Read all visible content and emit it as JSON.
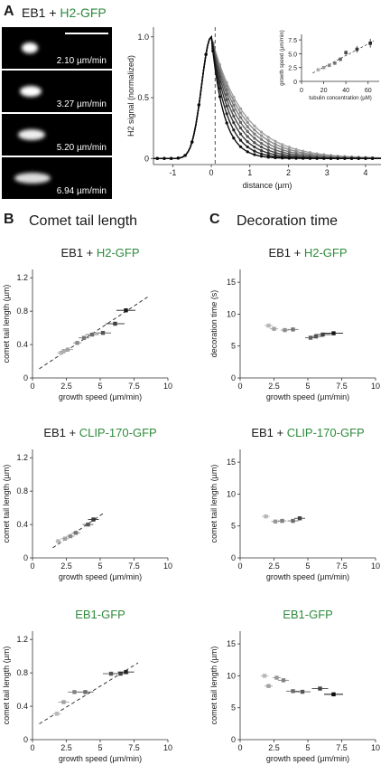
{
  "panel_a": {
    "letter": "A",
    "title_prefix": "EB1 + ",
    "title_green": "H2-GFP",
    "kymographs": [
      {
        "speed": "2.10 µm/min",
        "tail": 0.3
      },
      {
        "speed": "3.27 µm/min",
        "tail": 0.45
      },
      {
        "speed": "5.20 µm/min",
        "tail": 0.65
      },
      {
        "speed": "6.94 µm/min",
        "tail": 0.85
      }
    ]
  },
  "panel_b": {
    "letter": "B",
    "title": "Comet tail length"
  },
  "panel_c": {
    "letter": "C",
    "title": "Decoration time"
  },
  "colors": {
    "green": "#2e8b3c",
    "dark": "#1a1a1a",
    "grey": "#888888",
    "light": "#bbbbbb"
  },
  "chart_data": [
    {
      "id": "profile",
      "type": "line",
      "xlabel": "distance (µm)",
      "ylabel": "H2 signal (normalized)",
      "xlim": [
        -1.5,
        4.4
      ],
      "ylim": [
        -0.05,
        1.08
      ],
      "xticks": [
        -1,
        0,
        1,
        2,
        3,
        4
      ],
      "yticks": [
        0,
        0.5,
        1.0
      ],
      "ytick_labels": [
        "0",
        "0.5",
        "1.0"
      ],
      "vline_x": 0.1,
      "series_decay": [
        1.35,
        1.1,
        0.9,
        0.75,
        0.6,
        0.5,
        0.42,
        0.35
      ]
    },
    {
      "id": "inset",
      "type": "scatter",
      "xlabel": "tubulin concentration (µM)",
      "ylabel": "growth speed (µm/min)",
      "xlim": [
        0,
        70
      ],
      "ylim": [
        0,
        8.5
      ],
      "xticks": [
        0,
        20,
        40,
        60
      ],
      "yticks": [
        0,
        2.5,
        5.0,
        7.5
      ],
      "ytick_labels": [
        "0",
        "2.5",
        "5.0",
        "7.5"
      ],
      "x": [
        15,
        20,
        25,
        30,
        35,
        40,
        50,
        62
      ],
      "y": [
        2.1,
        2.5,
        2.9,
        3.3,
        4.0,
        5.2,
        5.8,
        6.9
      ],
      "yerr": [
        0.2,
        0.2,
        0.2,
        0.3,
        0.3,
        0.4,
        0.6,
        0.8
      ],
      "fit": [
        [
          10,
          1.5
        ],
        [
          65,
          7.3
        ]
      ]
    },
    {
      "id": "b1",
      "type": "scatter",
      "title_prefix": "EB1 + ",
      "title_green": "H2-GFP",
      "xlabel": "growth speed (µm/min)",
      "ylabel": "comet tail length (µm)",
      "xlim": [
        0,
        10
      ],
      "ylim": [
        0,
        1.3
      ],
      "xticks": [
        0,
        2.5,
        5.0,
        7.5,
        10.0
      ],
      "yticks": [
        0,
        0.4,
        0.8,
        1.2
      ],
      "x": [
        2.1,
        2.3,
        2.6,
        3.3,
        3.8,
        4.4,
        5.2,
        6.1,
        6.9
      ],
      "y": [
        0.3,
        0.32,
        0.34,
        0.42,
        0.48,
        0.52,
        0.54,
        0.65,
        0.81
      ],
      "xerr": [
        0.3,
        0.3,
        0.4,
        0.3,
        0.4,
        0.5,
        0.6,
        0.7,
        0.7
      ],
      "shade": [
        0.85,
        0.8,
        0.75,
        0.65,
        0.55,
        0.5,
        0.4,
        0.3,
        0.1
      ],
      "fit": [
        [
          0.5,
          0.11
        ],
        [
          8.5,
          0.97
        ]
      ]
    },
    {
      "id": "c1",
      "type": "scatter",
      "title_prefix": "EB1 + ",
      "title_green": "H2-GFP",
      "xlabel": "growth speed (µm/min)",
      "ylabel": "decoration time (s)",
      "xlim": [
        0,
        10
      ],
      "ylim": [
        0,
        17
      ],
      "xticks": [
        0,
        2.5,
        5.0,
        7.5,
        10.0
      ],
      "yticks": [
        0,
        5,
        10,
        15
      ],
      "x": [
        2.1,
        2.5,
        3.3,
        3.9,
        5.2,
        5.6,
        6.1,
        6.9
      ],
      "y": [
        8.2,
        7.7,
        7.5,
        7.6,
        6.3,
        6.5,
        6.8,
        7.0
      ],
      "xerr": [
        0.3,
        0.3,
        0.3,
        0.4,
        0.4,
        0.5,
        0.6,
        0.7
      ],
      "shade": [
        0.85,
        0.75,
        0.65,
        0.55,
        0.45,
        0.4,
        0.3,
        0.1
      ]
    },
    {
      "id": "b2",
      "type": "scatter",
      "title_prefix": "EB1 + ",
      "title_green": "CLIP-170-GFP",
      "xlabel": "growth speed (µm/min)",
      "ylabel": "comet tail length (µm)",
      "xlim": [
        0,
        10
      ],
      "ylim": [
        0,
        1.3
      ],
      "xticks": [
        0,
        2.5,
        5.0,
        7.5,
        10.0
      ],
      "yticks": [
        0,
        0.4,
        0.8,
        1.2
      ],
      "x": [
        1.9,
        2.4,
        2.8,
        3.2,
        4.1,
        4.5
      ],
      "y": [
        0.2,
        0.23,
        0.26,
        0.3,
        0.4,
        0.46
      ],
      "xerr": [
        0.2,
        0.3,
        0.3,
        0.3,
        0.4,
        0.4
      ],
      "shade": [
        0.85,
        0.75,
        0.65,
        0.55,
        0.4,
        0.25
      ],
      "fit": [
        [
          1.5,
          0.12
        ],
        [
          5.2,
          0.53
        ]
      ]
    },
    {
      "id": "c2",
      "type": "scatter",
      "title_prefix": "EB1 + ",
      "title_green": "CLIP-170-GFP",
      "xlabel": "growth speed (µm/min)",
      "ylabel": "comet tail length (µm)",
      "xlim": [
        0,
        10
      ],
      "ylim": [
        0,
        17
      ],
      "xticks": [
        0,
        2.5,
        5.0,
        7.5,
        10.0
      ],
      "yticks": [
        0,
        5,
        10,
        15
      ],
      "x": [
        1.9,
        2.6,
        3.1,
        3.9,
        4.4
      ],
      "y": [
        6.5,
        5.7,
        5.8,
        5.8,
        6.2
      ],
      "xerr": [
        0.3,
        0.3,
        0.3,
        0.4,
        0.4
      ],
      "shade": [
        0.85,
        0.7,
        0.6,
        0.5,
        0.3
      ]
    },
    {
      "id": "b3",
      "type": "scatter",
      "title_prefix": "",
      "title_green": "EB1-GFP",
      "xlabel": "growth speed (µm/min)",
      "ylabel": "comet tail length (µm)",
      "xlim": [
        0,
        10
      ],
      "ylim": [
        0,
        1.3
      ],
      "xticks": [
        0,
        2.5,
        5.0,
        7.5,
        10.0
      ],
      "yticks": [
        0,
        0.4,
        0.8,
        1.2
      ],
      "x": [
        1.8,
        2.3,
        3.1,
        3.9,
        5.8,
        6.5,
        6.9
      ],
      "y": [
        0.31,
        0.45,
        0.57,
        0.57,
        0.79,
        0.79,
        0.81
      ],
      "xerr": [
        0.3,
        0.4,
        0.5,
        0.6,
        0.6,
        0.6,
        0.6
      ],
      "shade": [
        0.85,
        0.75,
        0.6,
        0.5,
        0.4,
        0.3,
        0.15
      ],
      "fit": [
        [
          0.5,
          0.19
        ],
        [
          7.8,
          0.92
        ]
      ]
    },
    {
      "id": "c3",
      "type": "scatter",
      "title_prefix": "",
      "title_green": "EB1-GFP",
      "xlabel": "growth speed (µm/min)",
      "ylabel": "comet tail length (µm)",
      "xlim": [
        0,
        10
      ],
      "ylim": [
        0,
        17
      ],
      "xticks": [
        0,
        2.5,
        5.0,
        7.5,
        10.0
      ],
      "yticks": [
        0,
        5,
        10,
        15
      ],
      "x": [
        1.8,
        2.1,
        2.7,
        3.2,
        3.9,
        4.6,
        5.9,
        6.9
      ],
      "y": [
        10.0,
        8.4,
        9.7,
        9.3,
        7.6,
        7.5,
        8.0,
        7.1
      ],
      "xerr": [
        0.3,
        0.3,
        0.3,
        0.4,
        0.5,
        0.6,
        0.6,
        0.7
      ],
      "shade": [
        0.85,
        0.75,
        0.7,
        0.6,
        0.5,
        0.4,
        0.3,
        0.05
      ]
    }
  ]
}
